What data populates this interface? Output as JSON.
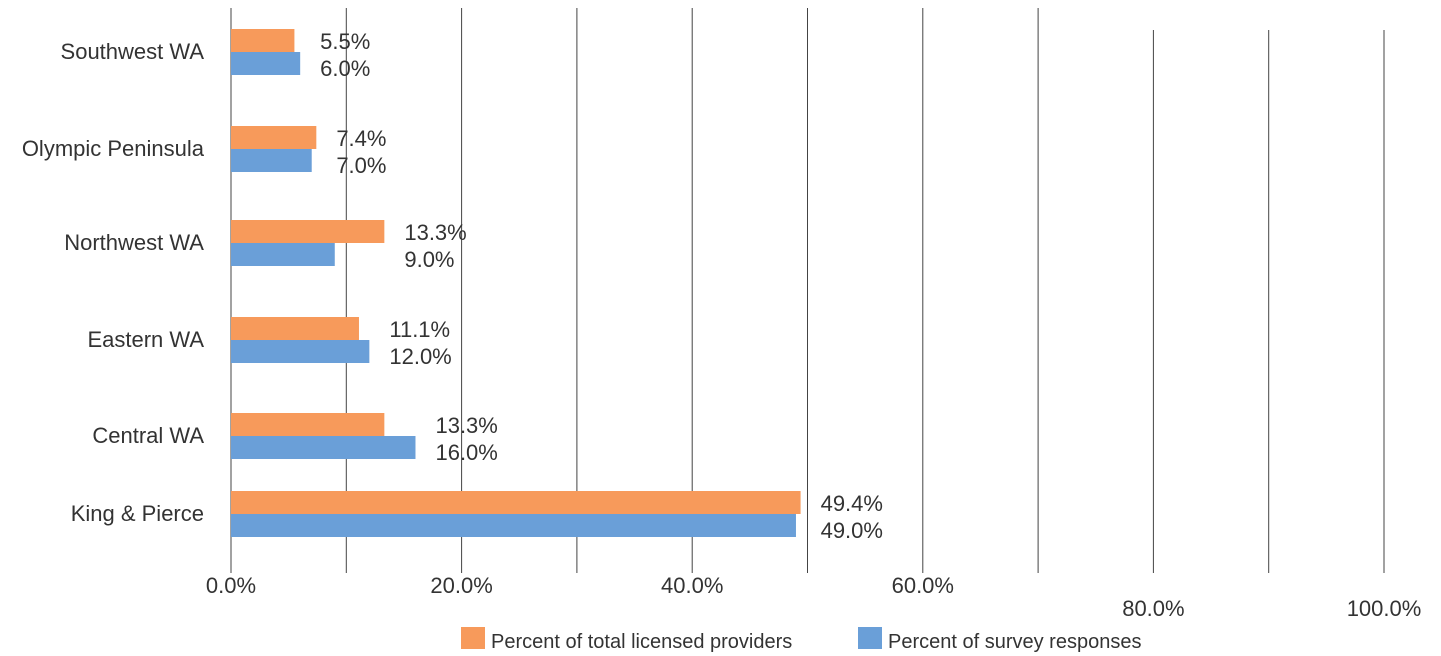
{
  "colors": {
    "series1": "#F79A5B",
    "series2": "#6A9FD8",
    "gridline": "#444444",
    "text": "#333333"
  },
  "chart_data": {
    "type": "bar",
    "orientation": "horizontal",
    "categories": [
      "Southwest WA",
      "Olympic Peninsula",
      "Northwest WA",
      "Eastern WA",
      "Central WA",
      "King & Pierce"
    ],
    "series": [
      {
        "name": "Percent of total licensed providers",
        "values": [
          5.5,
          7.4,
          13.3,
          11.1,
          13.3,
          49.4
        ],
        "labels": [
          "5.5%",
          "7.4%",
          "13.3%",
          "11.1%",
          "13.3%",
          "49.4%"
        ]
      },
      {
        "name": "Percent of survey responses",
        "values": [
          6.0,
          7.0,
          9.0,
          12.0,
          16.0,
          49.0
        ],
        "labels": [
          "6.0%",
          "7.0%",
          "9.0%",
          "12.0%",
          "16.0%",
          "49.0%"
        ]
      }
    ],
    "xlim": [
      0,
      100
    ],
    "x_ticks": [
      0,
      20,
      40,
      60,
      80,
      100
    ],
    "x_tick_labels": [
      "0.0%",
      "20.0%",
      "40.0%",
      "60.0%",
      "80.0%",
      "100.0%"
    ],
    "title": "",
    "xlabel": "",
    "ylabel": "",
    "grid": true,
    "legend_position": "bottom"
  }
}
